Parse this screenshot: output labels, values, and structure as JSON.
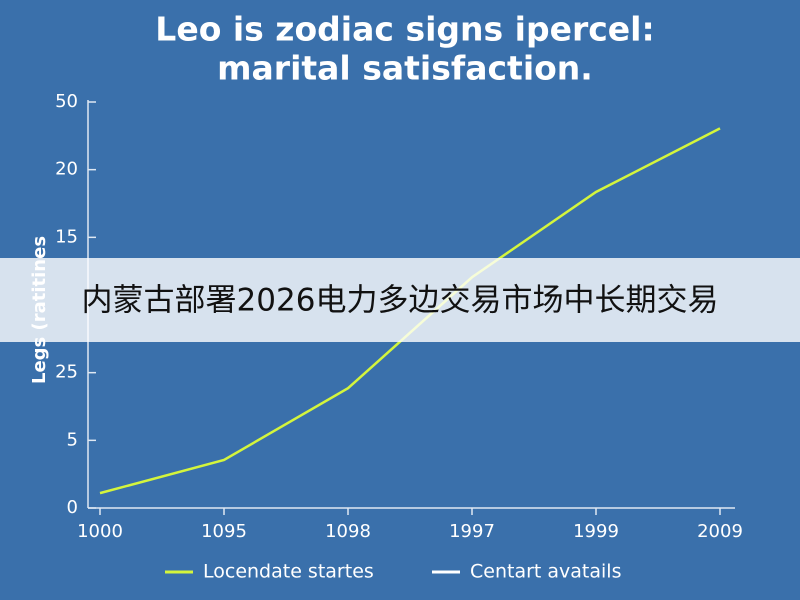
{
  "chart_data": {
    "type": "line",
    "title": [
      "Leo is zodiac signs ipercel:",
      "marital satisfaction."
    ],
    "y_label": "Legs (ratitines",
    "categories": [
      "1000",
      "1095",
      "1098",
      "1997",
      "1999",
      "2009"
    ],
    "series": [
      {
        "name": "Locendate startes",
        "color": "#d4f53c",
        "values": [
          2.2,
          7.1,
          17.7,
          34.1,
          46.7,
          56.1
        ]
      },
      {
        "name": "Centart avatails",
        "color": "#ffffff",
        "values": [
          null,
          null,
          null,
          null,
          null,
          null
        ]
      }
    ],
    "ylim": [
      0,
      60
    ],
    "yticks": [
      0,
      {
        "value": 10,
        "label": "5"
      },
      {
        "value": 20,
        "label": "25"
      },
      {
        "value": 40,
        "label": "15"
      },
      {
        "value": 50,
        "label": "20"
      },
      {
        "value": 60,
        "label": "50"
      }
    ],
    "grid": false
  },
  "banner": {
    "text": "内蒙古部署2026电力多边交易市场中长期交易"
  }
}
